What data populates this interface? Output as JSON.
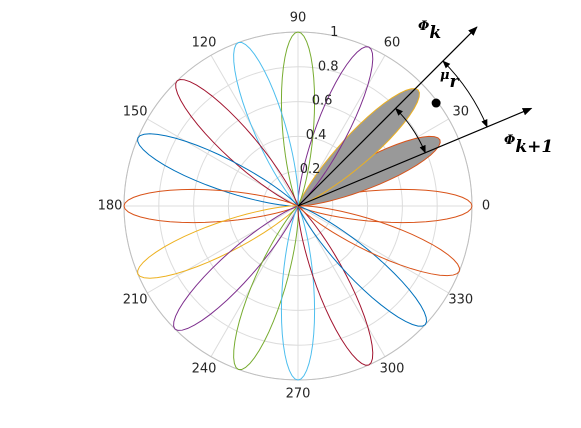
{
  "chart_data": {
    "type": "polar",
    "rlim": [
      0,
      1
    ],
    "rticks": [
      0.2,
      0.4,
      0.6,
      0.8,
      1
    ],
    "thetaticks": [
      0,
      30,
      60,
      90,
      120,
      150,
      180,
      210,
      240,
      270,
      300,
      330
    ],
    "grid": true,
    "series": [
      {
        "color": "#D95319",
        "angle": 0,
        "peak": 1
      },
      {
        "color": "#D95319",
        "angle": 25,
        "peak": 0.9,
        "fill": "#999999"
      },
      {
        "color": "#EDB120",
        "angle": 44,
        "peak": 0.96,
        "fill": "#999999"
      },
      {
        "color": "#7E2F8E",
        "angle": 66,
        "peak": 1
      },
      {
        "color": "#77AC30",
        "angle": 90,
        "peak": 1
      },
      {
        "color": "#4DBEEE",
        "angle": 110,
        "peak": 1
      },
      {
        "color": "#A2142F",
        "angle": 134,
        "peak": 1
      },
      {
        "color": "#0072BD",
        "angle": 157,
        "peak": 1
      },
      {
        "color": "#D95319",
        "angle": 180,
        "peak": 1
      },
      {
        "color": "#EDB120",
        "angle": 203,
        "peak": 1
      },
      {
        "color": "#7E2F8E",
        "angle": 225,
        "peak": 1
      },
      {
        "color": "#77AC30",
        "angle": 250,
        "peak": 1
      },
      {
        "color": "#4DBEEE",
        "angle": 270,
        "peak": 1
      },
      {
        "color": "#A2142F",
        "angle": 294,
        "peak": 1
      },
      {
        "color": "#0072BD",
        "angle": 317,
        "peak": 1
      },
      {
        "color": "#D95319",
        "angle": 338,
        "peak": 1
      }
    ],
    "arrows": [
      {
        "symbol": "Φ",
        "sub": "k",
        "angle": 45
      },
      {
        "symbol": "Φ",
        "sub": "k+1",
        "angle": 22.7
      }
    ],
    "point": {
      "symbol": "μ",
      "sub": "r",
      "angle": 36.7,
      "r": 0.99
    }
  }
}
